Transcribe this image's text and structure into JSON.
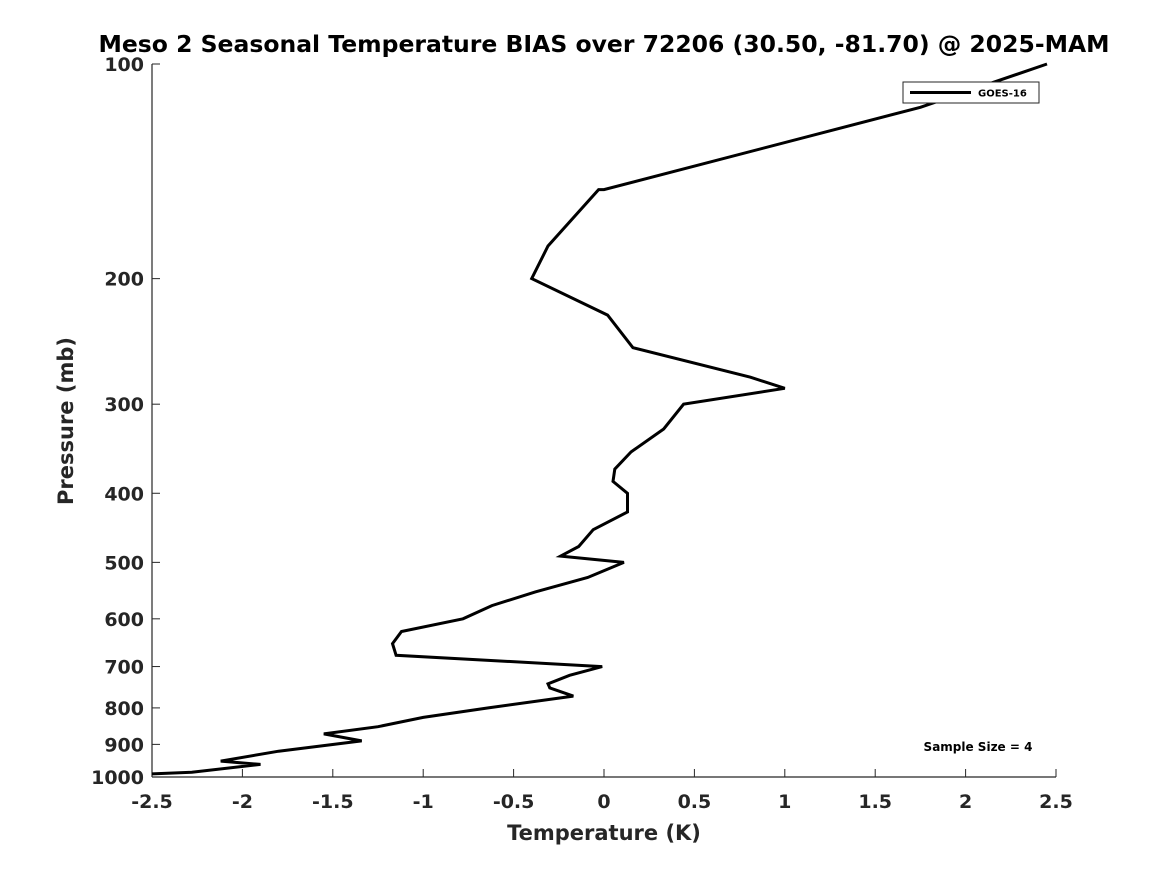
{
  "chart_data": {
    "type": "line",
    "title": "Meso 2 Seasonal Temperature BIAS over 72206 (30.50, -81.70) @ 2025-MAM",
    "xlabel": "Temperature (K)",
    "ylabel": "Pressure (mb)",
    "xlim": [
      -2.5,
      2.5
    ],
    "ylim": [
      1000,
      100
    ],
    "yscale": "log",
    "y_reversed": true,
    "x_ticks": [
      -2.5,
      -2,
      -1.5,
      -1,
      -0.5,
      0,
      0.5,
      1,
      1.5,
      2,
      2.5
    ],
    "x_tick_labels": [
      "-2.5",
      "-2",
      "-1.5",
      "-1",
      "-0.5",
      "0",
      "0.5",
      "1",
      "1.5",
      "2",
      "2.5"
    ],
    "y_ticks": [
      100,
      200,
      300,
      400,
      500,
      600,
      700,
      800,
      900,
      1000
    ],
    "y_tick_labels": [
      "100",
      "200",
      "300",
      "400",
      "500",
      "600",
      "700",
      "800",
      "900",
      "1000"
    ],
    "grid": false,
    "legend_position": "top-right",
    "series": [
      {
        "name": "GOES-16",
        "color": "#000000",
        "points": [
          [
            2.45,
            100
          ],
          [
            1.75,
            115
          ],
          [
            0.0,
            150
          ],
          [
            -0.03,
            150
          ],
          [
            -0.31,
            180
          ],
          [
            -0.4,
            200
          ],
          [
            0.02,
            225
          ],
          [
            0.16,
            250
          ],
          [
            0.81,
            275
          ],
          [
            1.0,
            285
          ],
          [
            0.44,
            300
          ],
          [
            0.33,
            325
          ],
          [
            0.15,
            350
          ],
          [
            0.06,
            370
          ],
          [
            0.05,
            385
          ],
          [
            0.13,
            400
          ],
          [
            0.13,
            425
          ],
          [
            -0.06,
            450
          ],
          [
            -0.14,
            475
          ],
          [
            -0.24,
            490
          ],
          [
            0.11,
            500
          ],
          [
            -0.09,
            525
          ],
          [
            -0.38,
            550
          ],
          [
            -0.62,
            575
          ],
          [
            -0.78,
            600
          ],
          [
            -1.12,
            625
          ],
          [
            -1.17,
            650
          ],
          [
            -1.15,
            675
          ],
          [
            -0.01,
            700
          ],
          [
            -0.19,
            720
          ],
          [
            -0.31,
            740
          ],
          [
            -0.3,
            750
          ],
          [
            -0.17,
            770
          ],
          [
            -0.64,
            800
          ],
          [
            -1.0,
            825
          ],
          [
            -1.25,
            850
          ],
          [
            -1.55,
            870
          ],
          [
            -1.34,
            890
          ],
          [
            -1.8,
            920
          ],
          [
            -2.12,
            950
          ],
          [
            -1.9,
            960
          ],
          [
            -2.28,
            985
          ],
          [
            -2.5,
            990
          ]
        ]
      }
    ],
    "annotations": [
      {
        "text": "Sample Size = 4"
      }
    ]
  }
}
